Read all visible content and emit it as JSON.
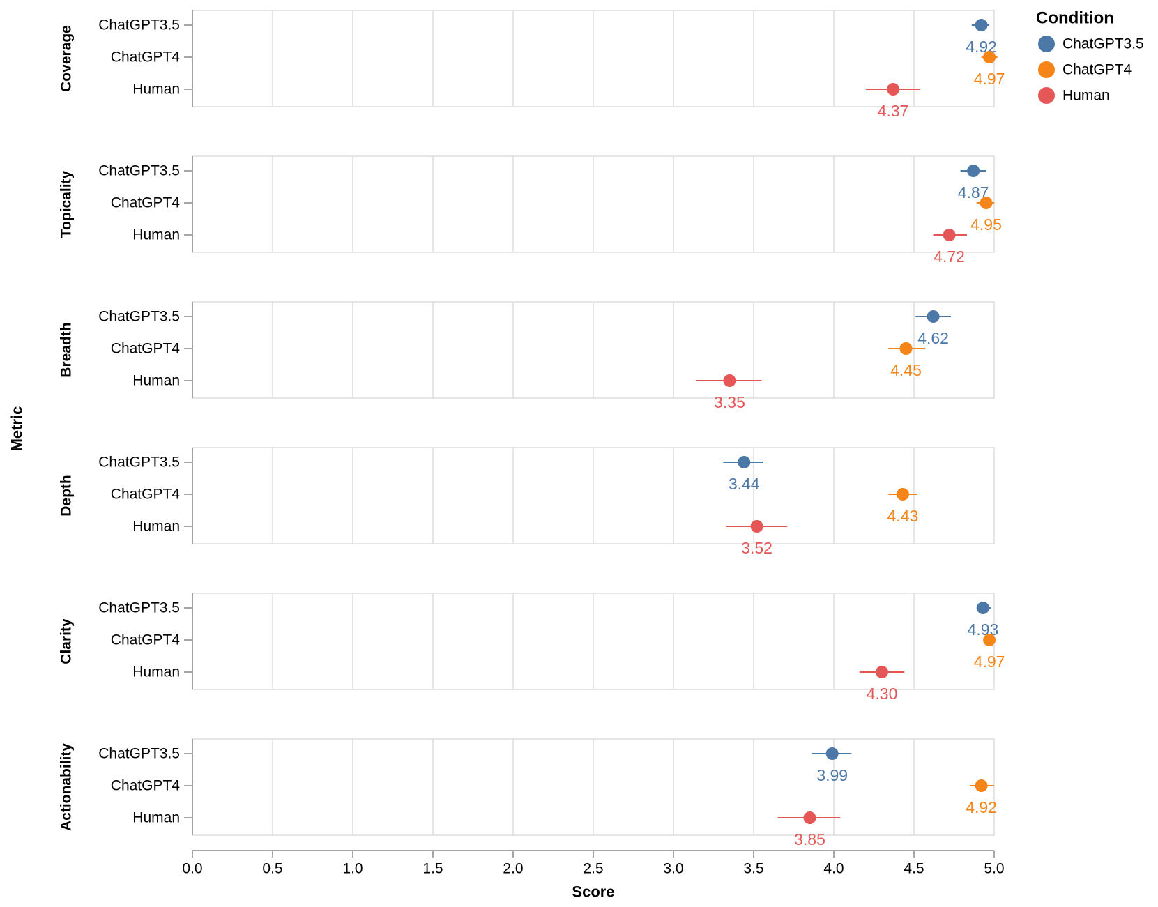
{
  "chart_data": {
    "type": "dot_errorbar_faceted",
    "facet_title": "Metric",
    "x_title": "Score",
    "xlim": [
      0,
      5
    ],
    "x_ticks": [
      "0.0",
      "0.5",
      "1.0",
      "1.5",
      "2.0",
      "2.5",
      "3.0",
      "3.5",
      "4.0",
      "4.5",
      "5.0"
    ],
    "conditions": [
      "ChatGPT3.5",
      "ChatGPT4",
      "Human"
    ],
    "legend": {
      "title": "Condition",
      "items": [
        {
          "name": "ChatGPT3.5",
          "color": "#4c78a8"
        },
        {
          "name": "ChatGPT4",
          "color": "#f58518"
        },
        {
          "name": "Human",
          "color": "#e45756"
        }
      ]
    },
    "facets": [
      {
        "metric": "Coverage",
        "points": [
          {
            "condition": "ChatGPT3.5",
            "value": 4.92,
            "label": "4.92",
            "lo": 4.86,
            "hi": 4.97
          },
          {
            "condition": "ChatGPT4",
            "value": 4.97,
            "label": "4.97",
            "lo": 4.92,
            "hi": 5.02
          },
          {
            "condition": "Human",
            "value": 4.37,
            "label": "4.37",
            "lo": 4.2,
            "hi": 4.54
          }
        ]
      },
      {
        "metric": "Topicality",
        "points": [
          {
            "condition": "ChatGPT3.5",
            "value": 4.87,
            "label": "4.87",
            "lo": 4.79,
            "hi": 4.95
          },
          {
            "condition": "ChatGPT4",
            "value": 4.95,
            "label": "4.95",
            "lo": 4.89,
            "hi": 5.0
          },
          {
            "condition": "Human",
            "value": 4.72,
            "label": "4.72",
            "lo": 4.62,
            "hi": 4.83
          }
        ]
      },
      {
        "metric": "Breadth",
        "points": [
          {
            "condition": "ChatGPT3.5",
            "value": 4.62,
            "label": "4.62",
            "lo": 4.51,
            "hi": 4.73
          },
          {
            "condition": "ChatGPT4",
            "value": 4.45,
            "label": "4.45",
            "lo": 4.34,
            "hi": 4.57
          },
          {
            "condition": "Human",
            "value": 3.35,
            "label": "3.35",
            "lo": 3.14,
            "hi": 3.55
          }
        ]
      },
      {
        "metric": "Depth",
        "points": [
          {
            "condition": "ChatGPT3.5",
            "value": 3.44,
            "label": "3.44",
            "lo": 3.31,
            "hi": 3.56
          },
          {
            "condition": "ChatGPT4",
            "value": 4.43,
            "label": "4.43",
            "lo": 4.34,
            "hi": 4.52
          },
          {
            "condition": "Human",
            "value": 3.52,
            "label": "3.52",
            "lo": 3.33,
            "hi": 3.71
          }
        ]
      },
      {
        "metric": "Clarity",
        "points": [
          {
            "condition": "ChatGPT3.5",
            "value": 4.93,
            "label": "4.93",
            "lo": 4.89,
            "hi": 4.98
          },
          {
            "condition": "ChatGPT4",
            "value": 4.97,
            "label": "4.97",
            "lo": 4.95,
            "hi": 5.0
          },
          {
            "condition": "Human",
            "value": 4.3,
            "label": "4.30",
            "lo": 4.16,
            "hi": 4.44
          }
        ]
      },
      {
        "metric": "Actionability",
        "points": [
          {
            "condition": "ChatGPT3.5",
            "value": 3.99,
            "label": "3.99",
            "lo": 3.86,
            "hi": 4.11
          },
          {
            "condition": "ChatGPT4",
            "value": 4.92,
            "label": "4.92",
            "lo": 4.85,
            "hi": 5.0
          },
          {
            "condition": "Human",
            "value": 3.85,
            "label": "3.85",
            "lo": 3.65,
            "hi": 4.04
          }
        ]
      }
    ]
  }
}
